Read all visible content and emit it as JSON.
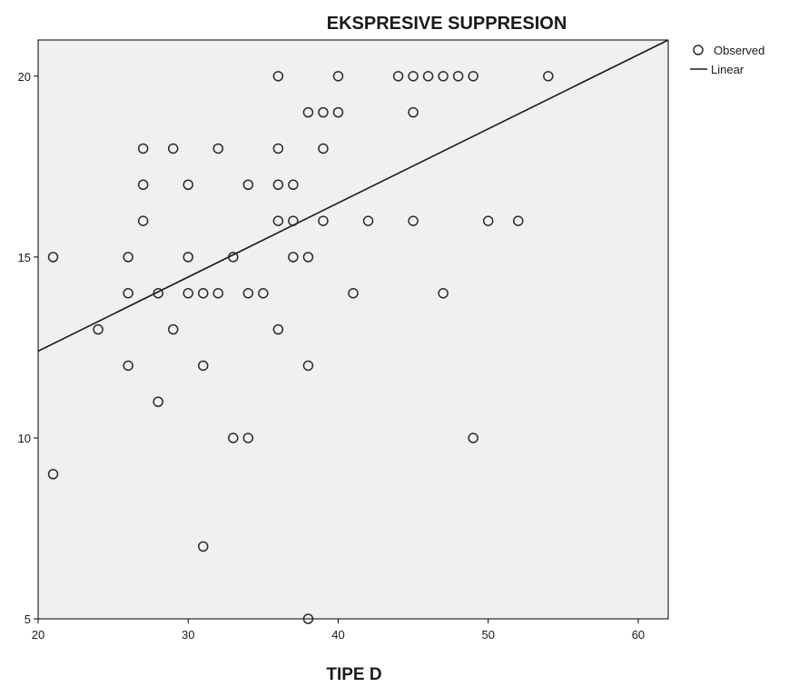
{
  "chart_data": {
    "type": "scatter",
    "title": "EKSPRESIVE SUPPRESION",
    "xlabel": "TIPE D",
    "ylabel": "",
    "xlim": [
      20,
      62
    ],
    "ylim": [
      5,
      21
    ],
    "x_ticks": [
      "20",
      "30",
      "40",
      "50",
      "60"
    ],
    "y_ticks": [
      "5",
      "10",
      "15",
      "20"
    ],
    "grid": false,
    "legend_position": "top-right",
    "legend": {
      "observed_label": "Observed",
      "linear_label": "Linear"
    },
    "colors": {
      "plot_background": "#f0f0f0",
      "marker": "#2a2a2a",
      "line": "#1a1a1a",
      "axis": "#000000"
    },
    "series": [
      {
        "name": "Observed",
        "type": "scatter",
        "points": [
          [
            21,
            15
          ],
          [
            21,
            9
          ],
          [
            24,
            13
          ],
          [
            26,
            15
          ],
          [
            26,
            14
          ],
          [
            26,
            12
          ],
          [
            27,
            18
          ],
          [
            27,
            17
          ],
          [
            27,
            16
          ],
          [
            28,
            14
          ],
          [
            28,
            11
          ],
          [
            29,
            18
          ],
          [
            29,
            13
          ],
          [
            30,
            17
          ],
          [
            30,
            15
          ],
          [
            30,
            14
          ],
          [
            31,
            14
          ],
          [
            31,
            12
          ],
          [
            31,
            7
          ],
          [
            32,
            18
          ],
          [
            32,
            14
          ],
          [
            33,
            15
          ],
          [
            33,
            10
          ],
          [
            34,
            17
          ],
          [
            34,
            14
          ],
          [
            34,
            10
          ],
          [
            35,
            14
          ],
          [
            36,
            20
          ],
          [
            36,
            18
          ],
          [
            36,
            17
          ],
          [
            36,
            16
          ],
          [
            36,
            13
          ],
          [
            37,
            17
          ],
          [
            37,
            16
          ],
          [
            37,
            15
          ],
          [
            38,
            19
          ],
          [
            38,
            15
          ],
          [
            38,
            12
          ],
          [
            38,
            5
          ],
          [
            39,
            19
          ],
          [
            39,
            18
          ],
          [
            39,
            16
          ],
          [
            40,
            20
          ],
          [
            40,
            19
          ],
          [
            41,
            14
          ],
          [
            42,
            16
          ],
          [
            44,
            20
          ],
          [
            45,
            20
          ],
          [
            45,
            19
          ],
          [
            45,
            16
          ],
          [
            46,
            20
          ],
          [
            47,
            20
          ],
          [
            47,
            14
          ],
          [
            48,
            20
          ],
          [
            49,
            20
          ],
          [
            49,
            10
          ],
          [
            50,
            16
          ],
          [
            52,
            16
          ],
          [
            54,
            20
          ]
        ]
      },
      {
        "name": "Linear",
        "type": "line",
        "points": [
          [
            20,
            12.4
          ],
          [
            62,
            21
          ]
        ]
      }
    ]
  }
}
